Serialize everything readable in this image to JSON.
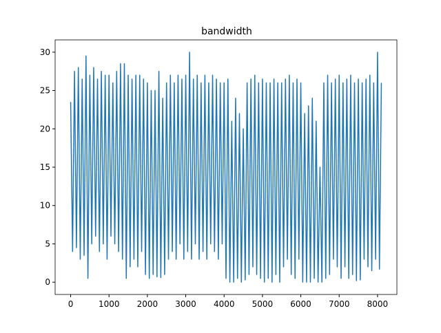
{
  "chart_data": {
    "type": "line",
    "title": "bandwidth",
    "x": [
      0,
      50,
      100,
      150,
      200,
      250,
      300,
      350,
      400,
      450,
      500,
      550,
      600,
      650,
      700,
      750,
      800,
      850,
      900,
      950,
      1000,
      1050,
      1100,
      1150,
      1200,
      1250,
      1300,
      1350,
      1400,
      1450,
      1500,
      1550,
      1600,
      1650,
      1700,
      1750,
      1800,
      1850,
      1900,
      1950,
      2000,
      2050,
      2100,
      2150,
      2200,
      2250,
      2300,
      2350,
      2400,
      2450,
      2500,
      2550,
      2600,
      2650,
      2700,
      2750,
      2800,
      2850,
      2900,
      2950,
      3000,
      3050,
      3100,
      3150,
      3200,
      3250,
      3300,
      3350,
      3400,
      3450,
      3500,
      3550,
      3600,
      3650,
      3700,
      3750,
      3800,
      3850,
      3900,
      3950,
      4000,
      4050,
      4100,
      4150,
      4200,
      4250,
      4300,
      4350,
      4400,
      4450,
      4500,
      4550,
      4600,
      4650,
      4700,
      4750,
      4800,
      4850,
      4900,
      4950,
      5000,
      5050,
      5100,
      5150,
      5200,
      5250,
      5300,
      5350,
      5400,
      5450,
      5500,
      5550,
      5600,
      5650,
      5700,
      5750,
      5800,
      5850,
      5900,
      5950,
      6000,
      6050,
      6100,
      6150,
      6200,
      6250,
      6300,
      6350,
      6400,
      6450,
      6500,
      6550,
      6600,
      6650,
      6700,
      6750,
      6800,
      6850,
      6900,
      6950,
      7000,
      7050,
      7100,
      7150,
      7200,
      7250,
      7300,
      7350,
      7400,
      7450,
      7500,
      7550,
      7600,
      7650,
      7700,
      7750,
      7800,
      7850,
      7900,
      7950,
      8000,
      8050,
      8100
    ],
    "series": [
      {
        "name": "bandwidth",
        "color": "#1f77b4",
        "values": [
          23.5,
          4,
          27.5,
          4.5,
          28,
          3,
          26.5,
          3.5,
          29.5,
          0.5,
          27,
          5,
          28,
          6,
          26.5,
          4,
          27.5,
          5,
          27,
          3,
          27,
          6,
          26,
          5,
          27.5,
          4,
          28.5,
          3,
          28.5,
          0.5,
          27,
          2,
          26.5,
          3,
          27,
          2,
          27,
          4,
          26.5,
          1,
          26,
          0.5,
          25,
          1,
          25,
          0.7,
          27.5,
          0.6,
          24,
          1,
          26,
          3,
          27,
          4,
          26,
          3,
          27,
          5,
          26.5,
          3,
          27,
          4,
          30,
          3,
          26.5,
          5,
          27,
          3,
          26,
          4,
          27,
          3,
          26,
          5,
          27,
          4,
          26.5,
          3,
          26,
          5,
          26,
          0.5,
          26.5,
          0,
          21,
          0,
          24,
          0.5,
          22,
          0,
          20,
          0.3,
          26,
          1,
          26.5,
          2,
          27,
          1,
          26,
          0.5,
          26.5,
          0,
          26,
          0.5,
          26,
          0,
          26.5,
          1,
          26,
          0,
          26,
          2,
          26.5,
          3,
          27,
          1,
          26,
          0.5,
          26.5,
          3,
          26,
          0,
          22,
          0,
          23,
          0,
          24,
          0.5,
          21,
          0,
          15,
          0,
          26,
          0.5,
          27,
          1,
          26,
          3,
          26.5,
          2,
          27,
          0.5,
          26,
          2,
          26.5,
          0.5,
          27,
          1,
          26,
          0.2,
          26.5,
          0.3,
          26,
          3,
          26.5,
          2,
          27,
          1.5,
          26,
          3,
          30,
          1.7,
          26
        ]
      }
    ],
    "xlim": [
      -405,
      8505
    ],
    "ylim": [
      -1.6,
      31.6
    ],
    "xticks": [
      0,
      1000,
      2000,
      3000,
      4000,
      5000,
      6000,
      7000,
      8000
    ],
    "yticks": [
      0,
      5,
      10,
      15,
      20,
      25,
      30
    ]
  }
}
